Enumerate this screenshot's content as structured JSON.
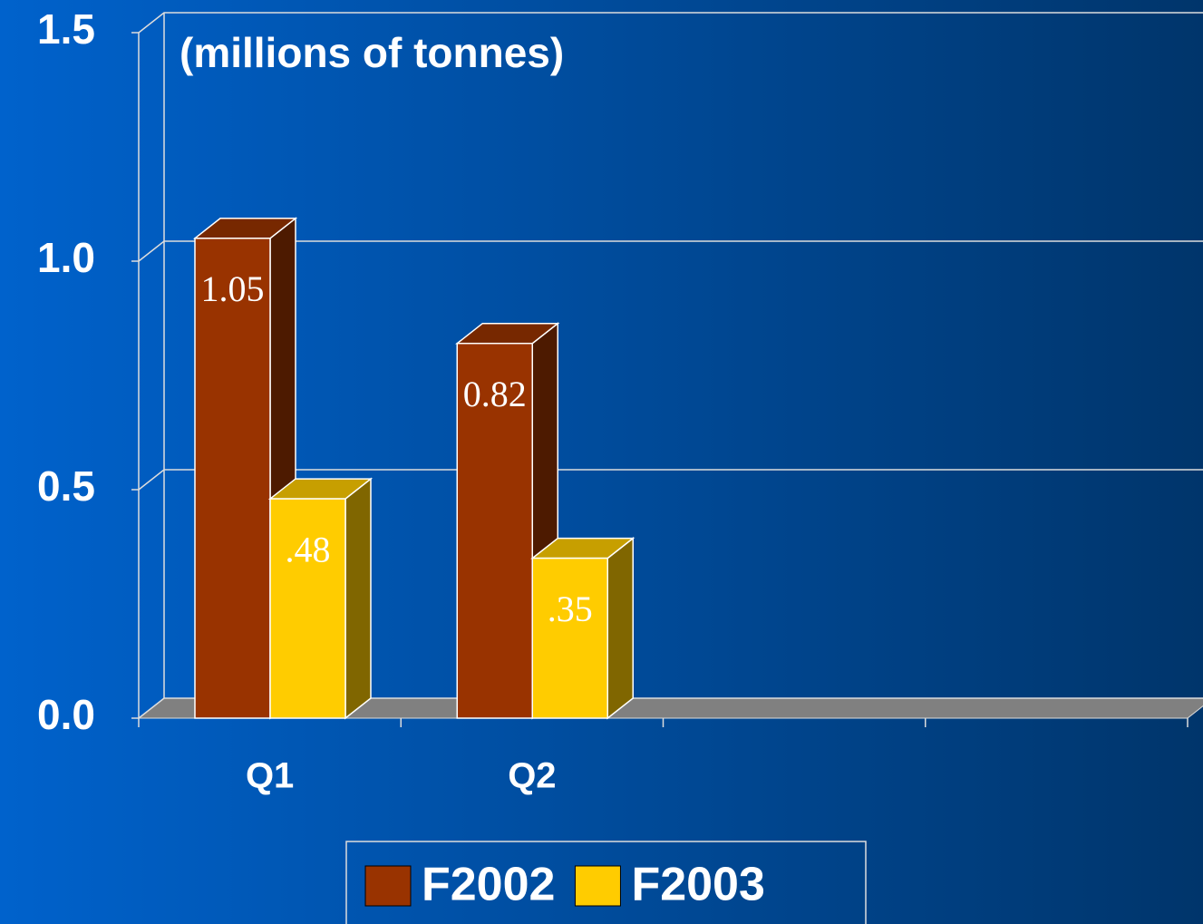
{
  "chart_data": {
    "type": "bar3d",
    "annotation": "(millions of tonnes)",
    "categories": [
      "Q1",
      "Q2",
      null,
      null
    ],
    "series": [
      {
        "name": "F2002",
        "color": "#993300",
        "values": [
          1.05,
          0.82,
          null,
          null
        ],
        "value_labels": [
          "1.05",
          "0.82",
          null,
          null
        ]
      },
      {
        "name": "F2003",
        "color": "#ffcc00",
        "values": [
          0.48,
          0.35,
          null,
          null
        ],
        "value_labels": [
          ".48",
          ".35",
          null,
          null
        ]
      }
    ],
    "ylim": [
      0,
      1.5
    ],
    "yticks": [
      {
        "value": 0,
        "label": "0.0"
      },
      0.5,
      {
        "value": 1,
        "label": "1.0"
      },
      1.5
    ],
    "grid": true,
    "legend": "bottom"
  }
}
